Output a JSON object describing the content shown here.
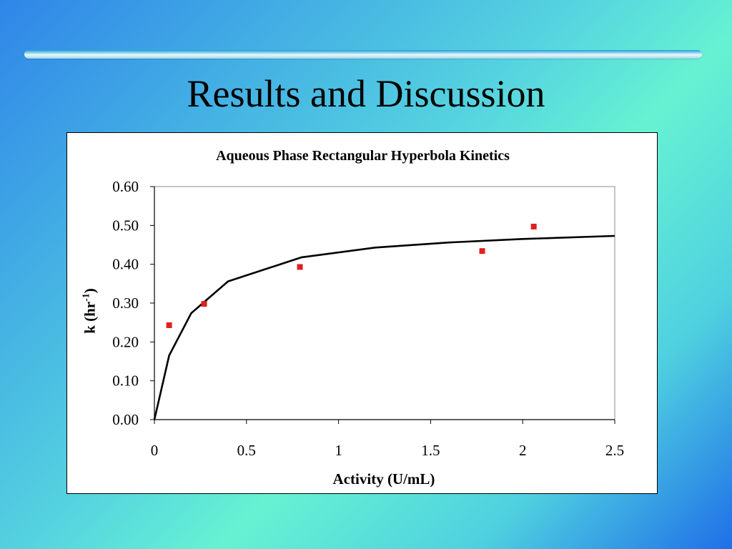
{
  "slide": {
    "title": "Results and Discussion"
  },
  "chart_data": {
    "type": "scatter",
    "title": "Aqueous Phase Rectangular Hyperbola Kinetics",
    "xlabel": "Activity (U/mL)",
    "ylabel": "k (hr",
    "ylabel_superscript": "-1",
    "ylabel_suffix": ")",
    "xlim": [
      0,
      2.5
    ],
    "ylim": [
      0,
      0.6
    ],
    "x_ticks": [
      "0",
      "0.5",
      "1",
      "1.5",
      "2",
      "2.5"
    ],
    "y_ticks": [
      "0.00",
      "0.10",
      "0.20",
      "0.30",
      "0.40",
      "0.50",
      "0.60"
    ],
    "grid": false,
    "legend": "none",
    "series": [
      {
        "kind": "scatter",
        "color": "#e02020",
        "points": [
          {
            "x": 0.08,
            "y": 0.243
          },
          {
            "x": 0.27,
            "y": 0.298
          },
          {
            "x": 0.79,
            "y": 0.393
          },
          {
            "x": 1.78,
            "y": 0.434
          },
          {
            "x": 2.06,
            "y": 0.497
          }
        ]
      },
      {
        "kind": "line",
        "color": "#000000",
        "points": [
          {
            "x": 0.0,
            "y": 0.0
          },
          {
            "x": 0.08,
            "y": 0.165
          },
          {
            "x": 0.2,
            "y": 0.274
          },
          {
            "x": 0.4,
            "y": 0.356
          },
          {
            "x": 0.8,
            "y": 0.418
          },
          {
            "x": 1.2,
            "y": 0.443
          },
          {
            "x": 1.6,
            "y": 0.456
          },
          {
            "x": 2.0,
            "y": 0.465
          },
          {
            "x": 2.5,
            "y": 0.473
          }
        ]
      }
    ]
  }
}
